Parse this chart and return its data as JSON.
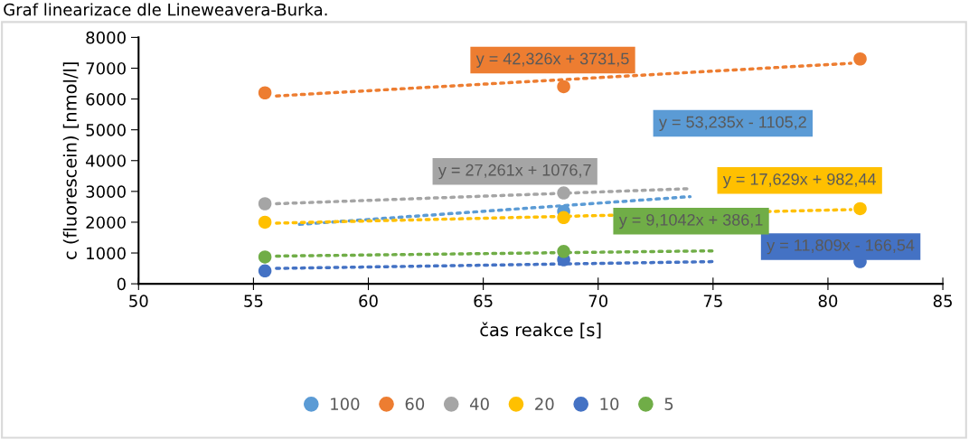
{
  "chart_data": {
    "type": "scatter",
    "title": "Graf linearizace dle Lineweavera-Burka.",
    "xlabel": "čas reakce [s]",
    "ylabel": "c (fluorescein) [nmol/l]",
    "x": [
      55.5,
      68.5,
      81.4
    ],
    "series": [
      {
        "name": "100",
        "color": "#5b9bd5",
        "values": [
          null,
          2350,
          null
        ]
      },
      {
        "name": "60",
        "color": "#ed7d31",
        "values": [
          6200,
          6400,
          7300
        ]
      },
      {
        "name": "40",
        "color": "#a5a5a5",
        "values": [
          2600,
          2950,
          null
        ]
      },
      {
        "name": "20",
        "color": "#ffc000",
        "values": [
          2000,
          2150,
          2440
        ]
      },
      {
        "name": "10",
        "color": "#4472c4",
        "values": [
          420,
          780,
          720
        ]
      },
      {
        "name": "5",
        "color": "#70ad47",
        "values": [
          870,
          1050,
          null
        ]
      },
      {
        "type": "line",
        "color": "#5b9bd5",
        "x": [
          57,
          74
        ],
        "values": [
          1930,
          2830
        ],
        "line_style": "dotted",
        "marker": "none"
      },
      {
        "type": "line",
        "color": "#ed7d31",
        "x": [
          56,
          81
        ],
        "values": [
          6100,
          7160
        ],
        "line_style": "dotted",
        "marker": "none"
      },
      {
        "type": "line",
        "color": "#a5a5a5",
        "x": [
          56,
          74
        ],
        "values": [
          2600,
          3090
        ],
        "line_style": "dotted",
        "marker": "none"
      },
      {
        "type": "line",
        "color": "#ffc000",
        "x": [
          56,
          81
        ],
        "values": [
          1970,
          2410
        ],
        "line_style": "dotted",
        "marker": "none"
      },
      {
        "type": "line",
        "color": "#4472c4",
        "x": [
          56,
          75
        ],
        "values": [
          500,
          720
        ],
        "line_style": "dotted",
        "marker": "none"
      },
      {
        "type": "line",
        "color": "#70ad47",
        "x": [
          56,
          75
        ],
        "values": [
          900,
          1070
        ],
        "line_style": "dotted",
        "marker": "none"
      }
    ],
    "annotations": [
      "y = 53,235x - 1105,2",
      "y = 42,326x + 3731,5",
      "y = 27,261x + 1076,7",
      "y = 17,629x + 982,44",
      "y = 11,809x - 166,54",
      "y = 9,1042x + 386,1"
    ],
    "xlim": [
      50,
      85
    ],
    "xticks": [
      50,
      55,
      60,
      65,
      70,
      75,
      80,
      85
    ],
    "ylim": [
      0,
      8000
    ],
    "yticks": [
      0,
      1000,
      2000,
      3000,
      4000,
      5000,
      6000,
      7000,
      8000
    ],
    "grid": false,
    "legend": "bottom",
    "marker": "circle"
  }
}
